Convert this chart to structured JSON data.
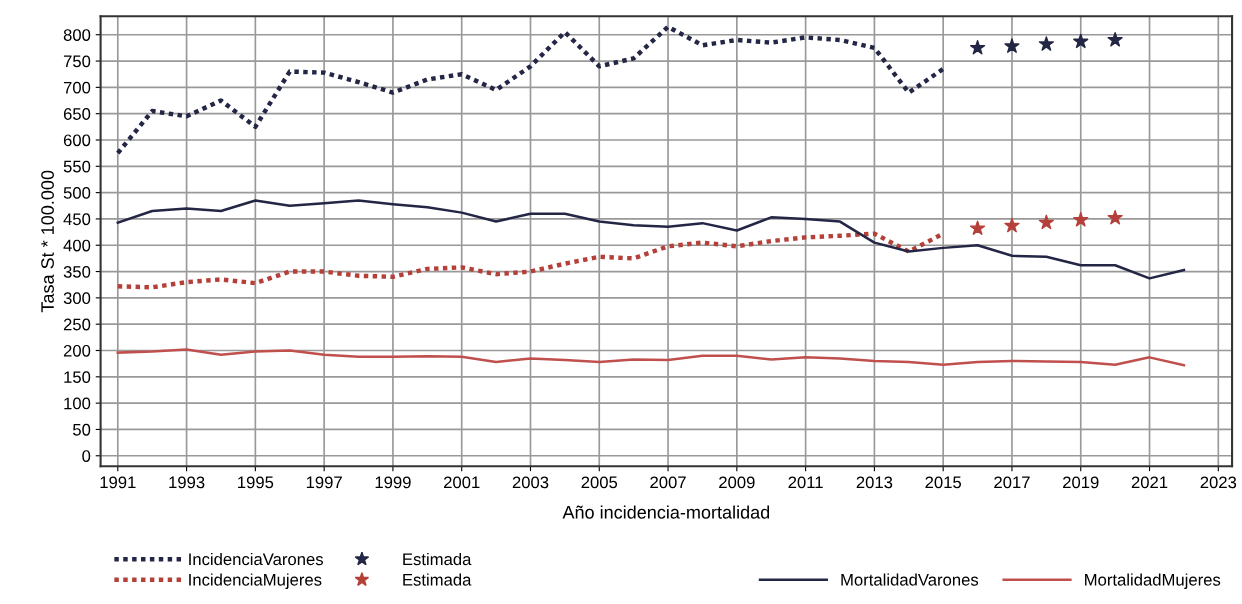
{
  "chart_data": {
    "type": "line",
    "xlabel": "Año incidencia-mortalidad",
    "ylabel": "Tasa St * 100.000",
    "xlim": [
      1990.5,
      2023.4
    ],
    "xticks": [
      1991,
      1993,
      1995,
      1997,
      1999,
      2001,
      2003,
      2005,
      2007,
      2009,
      2011,
      2013,
      2015,
      2017,
      2019,
      2021,
      2023
    ],
    "ylim": [
      -20,
      835
    ],
    "yticks": [
      0,
      50,
      100,
      150,
      200,
      250,
      300,
      350,
      400,
      450,
      500,
      550,
      600,
      650,
      700,
      750,
      800
    ],
    "grid": true,
    "legend": "bottom",
    "series": [
      {
        "name": "IncidenciaVarones",
        "line_style": "dotted",
        "color": "#232645",
        "x": [
          1991,
          1992,
          1993,
          1994,
          1995,
          1996,
          1997,
          1998,
          1999,
          2000,
          2001,
          2002,
          2003,
          2004,
          2005,
          2006,
          2007,
          2008,
          2009,
          2010,
          2011,
          2012,
          2013,
          2014,
          2015
        ],
        "values": [
          575,
          655,
          645,
          675,
          625,
          730,
          728,
          710,
          690,
          715,
          725,
          695,
          740,
          805,
          740,
          755,
          815,
          780,
          790,
          785,
          795,
          790,
          775,
          690,
          735
        ]
      },
      {
        "name": "IncidenciaMujeres",
        "line_style": "dotted",
        "color": "#b5403a",
        "x": [
          1991,
          1992,
          1993,
          1994,
          1995,
          1996,
          1997,
          1998,
          1999,
          2000,
          2001,
          2002,
          2003,
          2004,
          2005,
          2006,
          2007,
          2008,
          2009,
          2010,
          2011,
          2012,
          2013,
          2014,
          2015
        ],
        "values": [
          322,
          320,
          330,
          335,
          328,
          350,
          350,
          342,
          340,
          355,
          358,
          345,
          350,
          365,
          378,
          375,
          398,
          405,
          398,
          408,
          415,
          418,
          422,
          388,
          422
        ]
      },
      {
        "name": "Estimada",
        "type": "scatter",
        "marker": "star",
        "color": "#232645",
        "x": [
          2016,
          2017,
          2018,
          2019,
          2020
        ],
        "values": [
          775,
          778,
          782,
          787,
          790
        ]
      },
      {
        "name": "Estimada",
        "type": "scatter",
        "marker": "star",
        "color": "#b5403a",
        "x": [
          2016,
          2017,
          2018,
          2019,
          2020
        ],
        "values": [
          432,
          437,
          443,
          448,
          452
        ]
      },
      {
        "name": "MortalidadVarones",
        "line_style": "solid",
        "color": "#232645",
        "x": [
          1991,
          1992,
          1993,
          1994,
          1995,
          1996,
          1997,
          1998,
          1999,
          2000,
          2001,
          2002,
          2003,
          2004,
          2005,
          2006,
          2007,
          2008,
          2009,
          2010,
          2011,
          2012,
          2013,
          2014,
          2015,
          2016,
          2017,
          2018,
          2019,
          2020,
          2021,
          2022
        ],
        "values": [
          443,
          465,
          470,
          465,
          485,
          475,
          480,
          485,
          478,
          472,
          462,
          445,
          460,
          460,
          445,
          438,
          435,
          442,
          428,
          453,
          450,
          445,
          405,
          388,
          395,
          400,
          380,
          378,
          362,
          362,
          337,
          353
        ]
      },
      {
        "name": "MortalidadMujeres",
        "line_style": "solid",
        "color": "#c0504d",
        "x": [
          1991,
          1992,
          1993,
          1994,
          1995,
          1996,
          1997,
          1998,
          1999,
          2000,
          2001,
          2002,
          2003,
          2004,
          2005,
          2006,
          2007,
          2008,
          2009,
          2010,
          2011,
          2012,
          2013,
          2014,
          2015,
          2016,
          2017,
          2018,
          2019,
          2020,
          2021,
          2022
        ],
        "values": [
          196,
          198,
          202,
          192,
          198,
          200,
          192,
          188,
          188,
          189,
          188,
          178,
          185,
          182,
          178,
          183,
          182,
          190,
          190,
          183,
          187,
          185,
          180,
          178,
          173,
          178,
          180,
          179,
          178,
          173,
          187,
          172
        ]
      }
    ]
  }
}
